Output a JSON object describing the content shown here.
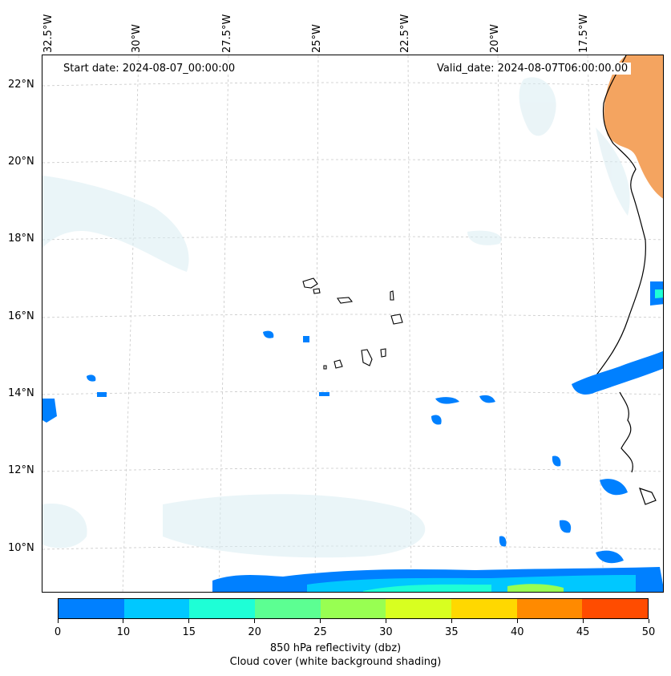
{
  "map": {
    "start_date": "Start date: 2024-08-07_00:00:00",
    "valid_date": "Valid_date: 2024-08-07T06:00:00.00",
    "longitude_labels": [
      "32.5°W",
      "30°W",
      "27.5°W",
      "25°W",
      "22.5°W",
      "20°W",
      "17.5°W"
    ],
    "latitude_labels": [
      "22°N",
      "20°N",
      "18°N",
      "16°N",
      "14°N",
      "12°N",
      "10°N"
    ],
    "colors": {
      "land_desert": "#f4a460",
      "cloud_shading": "#d9ecf2",
      "coastline": "#000000",
      "gridline": "#c8c8c8"
    }
  },
  "colorbar": {
    "ticks": [
      "0",
      "10",
      "15",
      "20",
      "25",
      "30",
      "35",
      "40",
      "45",
      "50"
    ],
    "colors": [
      "#0080ff",
      "#00c8ff",
      "#1effd6",
      "#5cff92",
      "#98ff52",
      "#d8ff20",
      "#ffd800",
      "#ff8a00",
      "#ff4c00"
    ],
    "label_line1": "850 hPa reflectivity (dbz)",
    "label_line2": "Cloud cover (white background shading)"
  }
}
